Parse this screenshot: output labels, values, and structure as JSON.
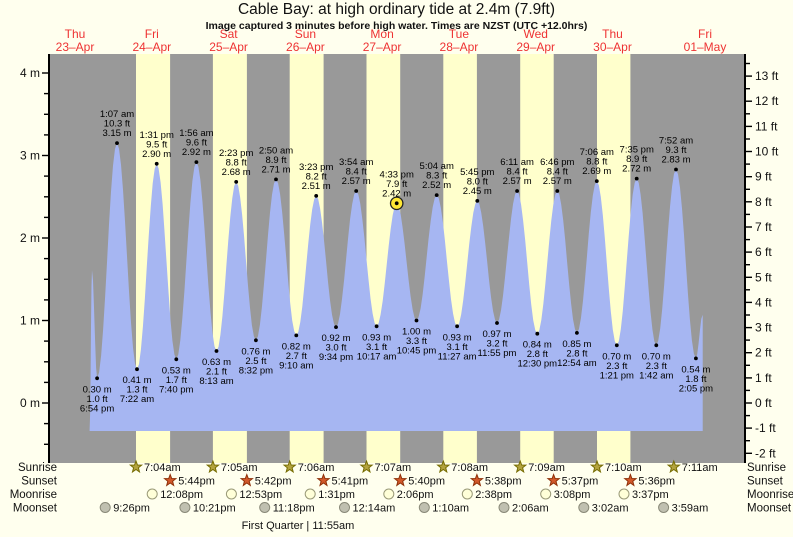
{
  "title": "Cable Bay: at high  ordinary tide at 2.4m (7.9ft)",
  "subtitle": "Image captured 3 minutes before high water. Times are NZST (UTC +12.0hrs)",
  "colors": {
    "page_background": "#ffffee",
    "plot_night_gray": "#999999",
    "plot_daylight_yellow": "#ffffcc",
    "tide_fill_blue": "#a6b6f2",
    "day_label_red": "#ee3333",
    "current_marker_yellow": "#ffe834",
    "text_black": "#111111"
  },
  "chart_data": {
    "type": "area",
    "title": "Cable Bay: at high  ordinary tide at 2.4m (7.9ft)",
    "subtitle": "Image captured 3 minutes before high water. Times are NZST (UTC +12.0hrs)",
    "y_axis_left_unit": "m",
    "y_axis_right_unit": "ft",
    "y_left_tick_labels": [
      "0 m",
      "1 m",
      "2 m",
      "3 m",
      "4 m"
    ],
    "y_right_tick_labels": [
      "-2 ft",
      "-1 ft",
      "0 ft",
      "1 ft",
      "2 ft",
      "3 ft",
      "4 ft",
      "5 ft",
      "6 ft",
      "7 ft",
      "8 ft",
      "9 ft",
      "10 ft",
      "11 ft",
      "12 ft",
      "13 ft"
    ],
    "ylim_m": [
      -0.73,
      4.15
    ],
    "grid": false,
    "legend": "none",
    "days": [
      {
        "name": "Thu",
        "date": "23–Apr"
      },
      {
        "name": "Fri",
        "date": "24–Apr"
      },
      {
        "name": "Sat",
        "date": "25–Apr"
      },
      {
        "name": "Sun",
        "date": "26–Apr"
      },
      {
        "name": "Mon",
        "date": "27–Apr"
      },
      {
        "name": "Tue",
        "date": "28–Apr"
      },
      {
        "name": "Wed",
        "date": "29–Apr"
      },
      {
        "name": "Thu",
        "date": "30–Apr"
      },
      {
        "name": "Fri",
        "date": "01–May"
      }
    ],
    "high_tides": [
      {
        "day": 1,
        "time": "1:07 am",
        "ft": "10.3",
        "m": "3.15"
      },
      {
        "day": 1,
        "time": "1:31 pm",
        "ft": "9.5",
        "m": "2.90"
      },
      {
        "day": 2,
        "time": "1:56 am",
        "ft": "9.6",
        "m": "2.92"
      },
      {
        "day": 2,
        "time": "2:23 pm",
        "ft": "8.8",
        "m": "2.68"
      },
      {
        "day": 3,
        "time": "2:50 am",
        "ft": "8.9",
        "m": "2.71"
      },
      {
        "day": 3,
        "time": "3:23 pm",
        "ft": "8.2",
        "m": "2.51"
      },
      {
        "day": 4,
        "time": "3:54 am",
        "ft": "8.4",
        "m": "2.57"
      },
      {
        "day": 4,
        "time": "4:33 pm",
        "ft": "7.9",
        "m": "2.42",
        "current": true
      },
      {
        "day": 5,
        "time": "5:04 am",
        "ft": "8.3",
        "m": "2.52"
      },
      {
        "day": 5,
        "time": "5:45 pm",
        "ft": "8.0",
        "m": "2.45"
      },
      {
        "day": 6,
        "time": "6:11 am",
        "ft": "8.4",
        "m": "2.57"
      },
      {
        "day": 6,
        "time": "6:46 pm",
        "ft": "8.4",
        "m": "2.57"
      },
      {
        "day": 7,
        "time": "7:06 am",
        "ft": "8.8",
        "m": "2.69"
      },
      {
        "day": 7,
        "time": "7:35 pm",
        "ft": "8.9",
        "m": "2.72"
      },
      {
        "day": 8,
        "time": "7:52 am",
        "ft": "9.3",
        "m": "2.83"
      }
    ],
    "low_tides": [
      {
        "day": 0,
        "time": "6:54 pm",
        "ft": "1.0",
        "m": "0.30"
      },
      {
        "day": 1,
        "time": "7:22 am",
        "ft": "1.3",
        "m": "0.41"
      },
      {
        "day": 1,
        "time": "7:40 pm",
        "ft": "1.7",
        "m": "0.53"
      },
      {
        "day": 2,
        "time": "8:13 am",
        "ft": "2.1",
        "m": "0.63"
      },
      {
        "day": 2,
        "time": "8:32 pm",
        "ft": "2.5",
        "m": "0.76"
      },
      {
        "day": 3,
        "time": "9:10 am",
        "ft": "2.7",
        "m": "0.82"
      },
      {
        "day": 3,
        "time": "9:34 pm",
        "ft": "3.0",
        "m": "0.92"
      },
      {
        "day": 4,
        "time": "10:17 am",
        "ft": "3.1",
        "m": "0.93"
      },
      {
        "day": 4,
        "time": "10:45 pm",
        "ft": "3.3",
        "m": "1.00"
      },
      {
        "day": 5,
        "time": "11:27 am",
        "ft": "3.1",
        "m": "0.93"
      },
      {
        "day": 5,
        "time": "11:55 pm",
        "ft": "3.2",
        "m": "0.97"
      },
      {
        "day": 6,
        "time": "12:30 pm",
        "ft": "2.8",
        "m": "0.84"
      },
      {
        "day": 7,
        "time": "12:54 am",
        "ft": "2.8",
        "m": "0.85"
      },
      {
        "day": 7,
        "time": "1:21 pm",
        "ft": "2.3",
        "m": "0.70"
      },
      {
        "day": 8,
        "time": "1:42 am",
        "ft": "2.3",
        "m": "0.70"
      },
      {
        "day": 8,
        "time": "2:05 pm",
        "ft": "1.8",
        "m": "0.54"
      }
    ]
  },
  "almanac": {
    "rows": [
      {
        "label": "Sunrise",
        "icon": "sunrise-star-icon",
        "events": [
          {
            "day": 1,
            "time": "7:04am"
          },
          {
            "day": 2,
            "time": "7:05am"
          },
          {
            "day": 3,
            "time": "7:06am"
          },
          {
            "day": 4,
            "time": "7:07am"
          },
          {
            "day": 5,
            "time": "7:08am"
          },
          {
            "day": 6,
            "time": "7:09am"
          },
          {
            "day": 7,
            "time": "7:10am"
          },
          {
            "day": 8,
            "time": "7:11am"
          }
        ]
      },
      {
        "label": "Sunset",
        "icon": "sunset-star-icon",
        "events": [
          {
            "day": 1,
            "time": "5:44pm"
          },
          {
            "day": 2,
            "time": "5:42pm"
          },
          {
            "day": 3,
            "time": "5:41pm"
          },
          {
            "day": 4,
            "time": "5:40pm"
          },
          {
            "day": 5,
            "time": "5:38pm"
          },
          {
            "day": 6,
            "time": "5:37pm"
          },
          {
            "day": 7,
            "time": "5:36pm"
          }
        ]
      },
      {
        "label": "Moonrise",
        "icon": "moonrise-circle-icon",
        "events": [
          {
            "day": 1,
            "time": "12:08pm"
          },
          {
            "day": 2,
            "time": "12:53pm"
          },
          {
            "day": 3,
            "time": "1:31pm"
          },
          {
            "day": 4,
            "time": "2:06pm"
          },
          {
            "day": 5,
            "time": "2:38pm"
          },
          {
            "day": 6,
            "time": "3:08pm"
          },
          {
            "day": 7,
            "time": "3:37pm"
          }
        ]
      },
      {
        "label": "Moonset",
        "icon": "moonset-circle-icon",
        "events": [
          {
            "day": 0,
            "time": "9:26pm"
          },
          {
            "day": 1,
            "time": "10:21pm"
          },
          {
            "day": 2,
            "time": "11:18pm"
          },
          {
            "day": 4,
            "time": "12:14am"
          },
          {
            "day": 5,
            "time": "1:10am"
          },
          {
            "day": 6,
            "time": "2:06am"
          },
          {
            "day": 7,
            "time": "3:02am"
          },
          {
            "day": 8,
            "time": "3:59am"
          }
        ]
      }
    ],
    "footer": "First Quarter | 11:55am"
  }
}
